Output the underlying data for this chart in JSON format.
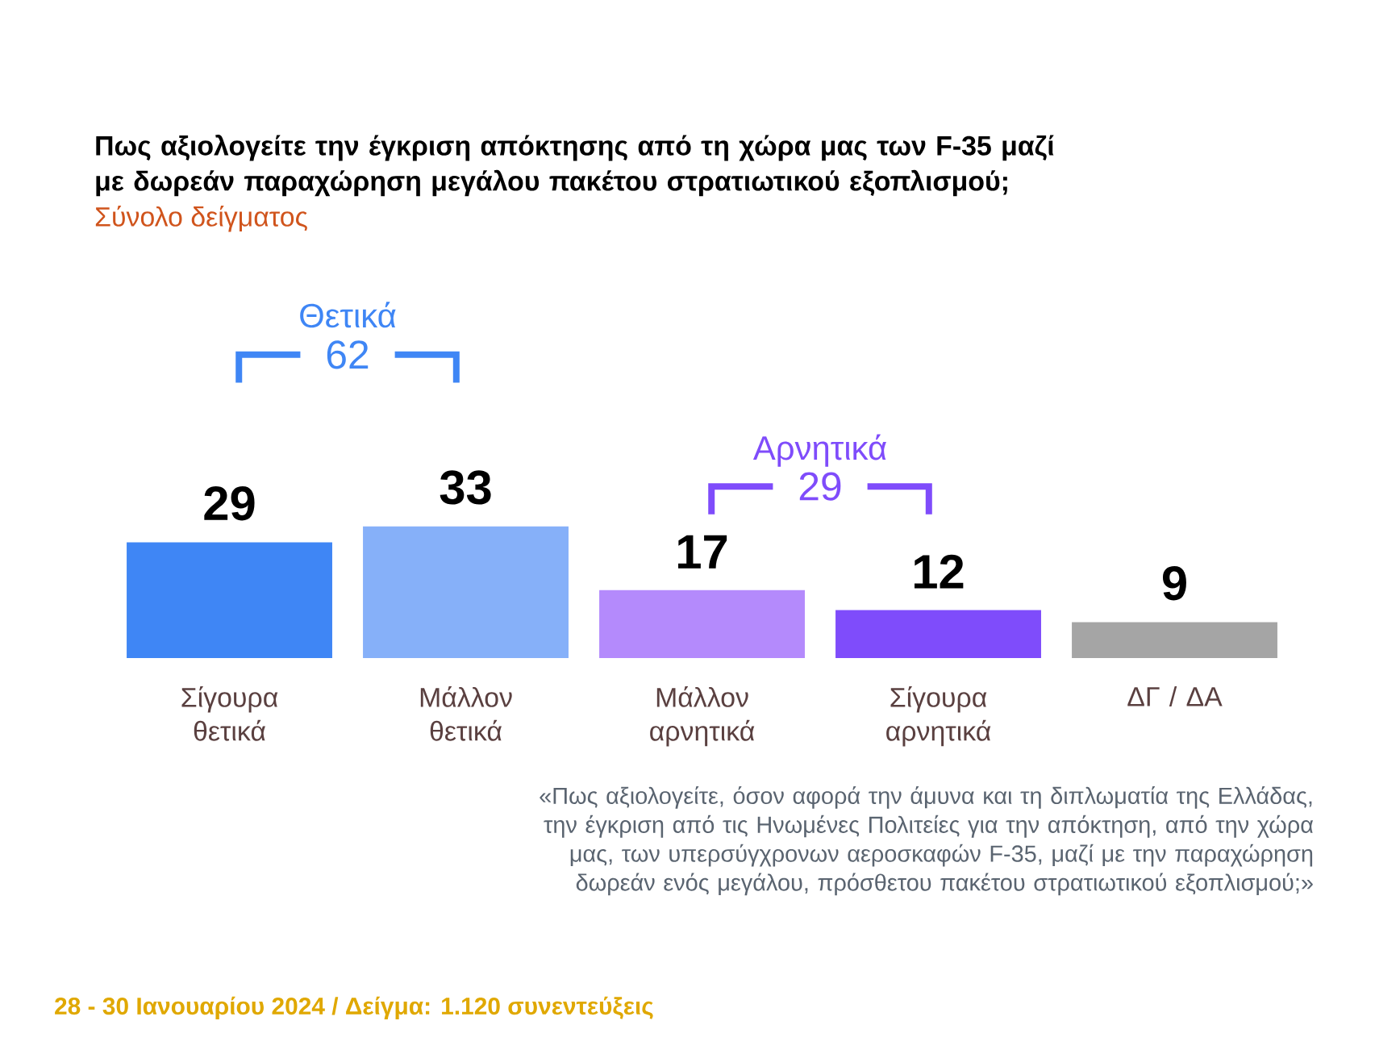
{
  "chart_data": {
    "type": "bar",
    "title": "Πως αξιολογείτε την έγκριση απόκτησης από τη χώρα μας των F-35 μαζί με δωρεάν παραχώρηση μεγάλου πακέτου στρατιωτικού εξοπλισμού;",
    "subtitle": "Σύνολο δείγματος",
    "categories": [
      "Σίγουρα θετικά",
      "Μάλλον θετικά",
      "Μάλλον αρνητικά",
      "Σίγουρα αρνητικά",
      "ΔΓ / ΔΑ"
    ],
    "values": [
      29,
      33,
      17,
      12,
      9
    ],
    "colors": [
      "#3f86f5",
      "#86b0f9",
      "#b48afc",
      "#7f4cfb",
      "#a5a5a5"
    ],
    "data_labels": true,
    "annotations": [
      "Θετικά",
      "62",
      "Αρνητικά",
      "29",
      "«Πως αξιολογείτε, όσον αφορά την άμυνα και τη διπλωματία της Ελλάδας, την έγκριση από τις Ηνωμένες Πολιτείες για την απόκτηση, από την χώρα μας, των υπερσύγχρονων αεροσκαφών F-35, μαζί με την παραχώρηση δωρεάν ενός μεγάλου, πρόσθετου πακέτου στρατιωτικού εξοπλισμού;»",
      "28 - 30 Ιανουαρίου 2024  /  Δείγμα:  1.120 συνεντεύξεις"
    ]
  }
}
